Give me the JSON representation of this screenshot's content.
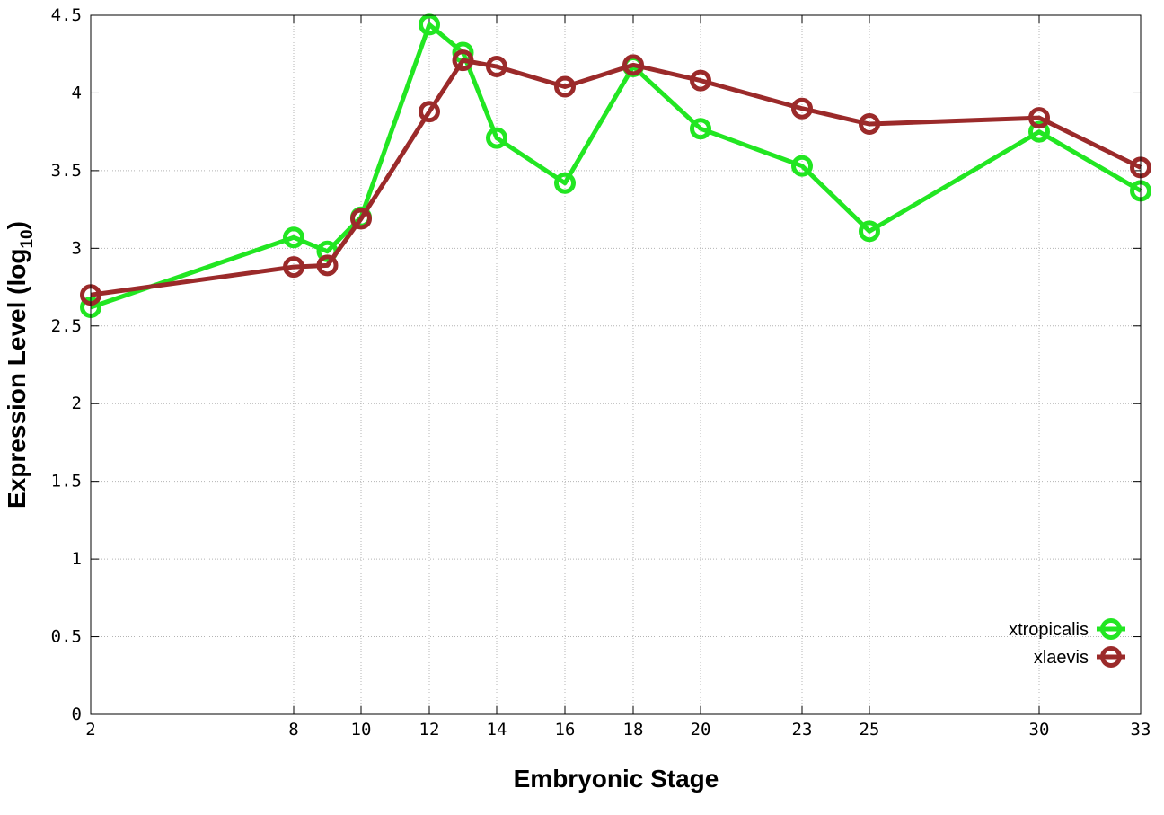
{
  "chart_data": {
    "type": "line",
    "xlabel": "Embryonic Stage",
    "ylabel_main": "Expression Level (log",
    "ylabel_sub": "10",
    "ylabel_end": ")",
    "x_ticks": [
      2,
      8,
      10,
      12,
      14,
      16,
      18,
      20,
      23,
      25,
      30,
      33
    ],
    "x_tick_labels": [
      "2",
      "8",
      "10",
      "12",
      "14",
      "16",
      "18",
      "20",
      "23",
      "25",
      "30",
      "33"
    ],
    "y_ticks": [
      0,
      0.5,
      1,
      1.5,
      2,
      2.5,
      3,
      3.5,
      4,
      4.5
    ],
    "y_tick_labels": [
      "0",
      "0.5",
      "1",
      "1.5",
      "2",
      "2.5",
      "3",
      "3.5",
      "4",
      "4.5"
    ],
    "ylim": [
      0,
      4.5
    ],
    "x_categories": [
      "2",
      "8",
      "9",
      "10",
      "12",
      "13",
      "14",
      "16",
      "18",
      "20",
      "23",
      "25",
      "30",
      "33"
    ],
    "grid": true,
    "legend_position": "bottom-right",
    "series": [
      {
        "name": "xtropicalis",
        "color": "#22e622",
        "values": [
          2.62,
          3.07,
          2.98,
          3.2,
          4.44,
          4.26,
          3.71,
          3.42,
          4.17,
          3.77,
          3.53,
          3.11,
          3.75,
          3.37
        ]
      },
      {
        "name": "xlaevis",
        "color": "#9b2a2a",
        "values": [
          2.7,
          2.88,
          2.89,
          3.19,
          3.88,
          4.21,
          4.17,
          4.04,
          4.18,
          4.08,
          3.9,
          3.8,
          3.84,
          3.52
        ]
      }
    ]
  }
}
